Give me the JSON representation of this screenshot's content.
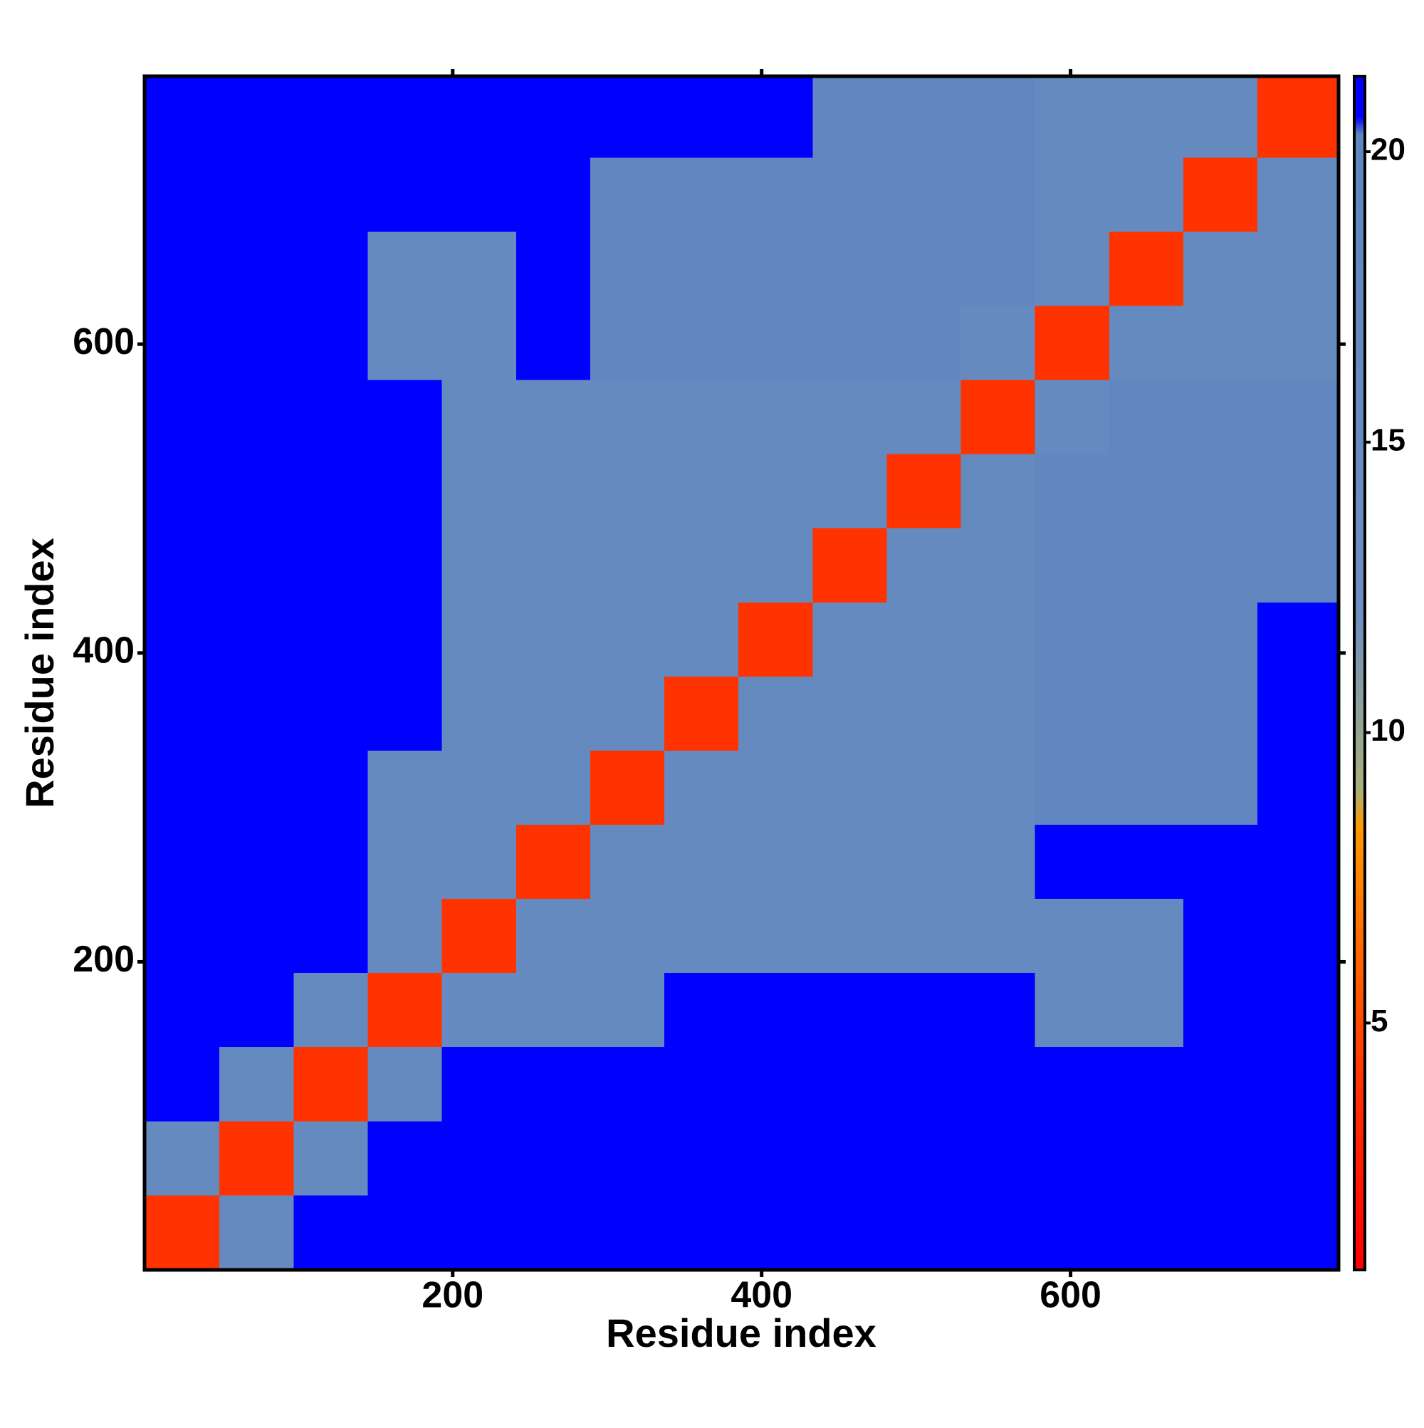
{
  "chart_data": {
    "type": "heatmap",
    "x_label": "Residue index",
    "y_label": "Residue index",
    "xlim": [
      0.5,
      773.5
    ],
    "ylim": [
      0.5,
      773.5
    ],
    "xticks": [
      200,
      400,
      600
    ],
    "yticks": [
      200,
      400,
      600
    ],
    "xbins": [
      0.5,
      49,
      97,
      145,
      193,
      241,
      289,
      337,
      385,
      433,
      481,
      529,
      577,
      625,
      673,
      721,
      773.5
    ],
    "ybins": [
      0.5,
      49,
      97,
      145,
      193,
      241,
      289,
      337,
      385,
      433,
      481,
      529,
      577,
      625,
      673,
      721,
      773.5
    ],
    "z": [
      [
        4,
        17,
        21,
        21,
        21,
        21,
        21,
        21,
        21,
        21,
        21,
        21,
        21,
        21,
        21,
        21
      ],
      [
        17,
        4,
        17,
        21,
        21,
        21,
        21,
        21,
        21,
        21,
        21,
        21,
        21,
        21,
        21,
        21
      ],
      [
        21,
        17,
        4,
        17,
        21,
        21,
        21,
        21,
        21,
        21,
        21,
        21,
        21,
        21,
        21,
        21
      ],
      [
        21,
        21,
        17,
        4,
        17,
        17,
        17,
        21,
        21,
        21,
        21,
        21,
        17,
        17,
        21,
        21
      ],
      [
        21,
        21,
        21,
        17,
        4,
        17,
        17,
        17,
        17,
        17,
        17,
        17,
        17,
        17,
        21,
        21
      ],
      [
        21,
        21,
        21,
        17,
        17,
        4,
        17,
        17,
        17,
        17,
        17,
        17,
        21,
        21,
        21,
        21
      ],
      [
        21,
        21,
        21,
        17,
        17,
        17,
        4,
        17,
        17,
        17,
        17,
        17,
        19,
        19,
        19,
        21
      ],
      [
        21,
        21,
        21,
        21,
        17,
        17,
        17,
        4,
        17,
        17,
        17,
        17,
        19,
        19,
        19,
        21
      ],
      [
        21,
        21,
        21,
        21,
        17,
        17,
        17,
        17,
        4,
        17,
        17,
        17,
        19,
        19,
        19,
        21
      ],
      [
        21,
        21,
        21,
        21,
        17,
        17,
        17,
        17,
        17,
        4,
        17,
        17,
        19,
        19,
        19,
        19
      ],
      [
        21,
        21,
        21,
        21,
        17,
        17,
        17,
        17,
        17,
        17,
        4,
        17,
        19,
        19,
        19,
        19
      ],
      [
        21,
        21,
        21,
        21,
        17,
        17,
        17,
        17,
        17,
        17,
        17,
        4,
        17,
        19,
        19,
        19
      ],
      [
        21,
        21,
        21,
        17,
        17,
        21,
        19,
        19,
        19,
        19,
        19,
        17,
        4,
        17,
        17,
        17
      ],
      [
        21,
        21,
        21,
        17,
        17,
        21,
        19,
        19,
        19,
        19,
        19,
        19,
        17,
        4,
        17,
        17
      ],
      [
        21,
        21,
        21,
        21,
        21,
        21,
        19,
        19,
        19,
        19,
        19,
        19,
        17,
        17,
        4,
        17
      ],
      [
        21,
        21,
        21,
        21,
        21,
        21,
        21,
        21,
        21,
        19,
        19,
        19,
        17,
        17,
        17,
        4
      ]
    ],
    "colorscale": [
      [
        0.75,
        "#ff0000"
      ],
      [
        4,
        "#ff3300"
      ],
      [
        8.4,
        "#ff9900"
      ],
      [
        9,
        "#a8b07a"
      ],
      [
        12,
        "#6f8fbf"
      ],
      [
        20.3,
        "#5f86c0"
      ],
      [
        20.6,
        "#0000ff"
      ],
      [
        21.3,
        "#0000ff"
      ]
    ],
    "colorbar_lim": [
      0.75,
      21.3
    ],
    "colorbar_ticks": [
      5,
      10,
      15,
      20
    ]
  }
}
